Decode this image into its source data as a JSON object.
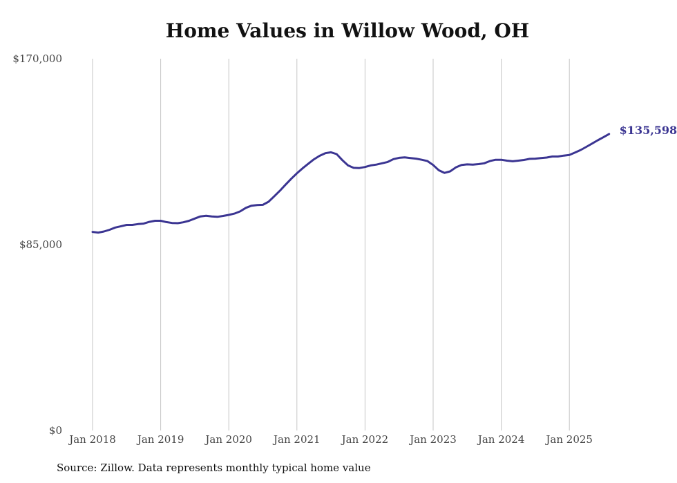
{
  "chart_data": {
    "type": "line",
    "title": "Home Values in Willow Wood, OH",
    "xlabel": "",
    "ylabel": "",
    "ylim": [
      0,
      170000
    ],
    "y_ticks": [
      "$0",
      "$85,000",
      "$170,000"
    ],
    "y_tick_values": [
      0,
      85000,
      170000
    ],
    "x_ticks": [
      "Jan 2018",
      "Jan 2019",
      "Jan 2020",
      "Jan 2021",
      "Jan 2022",
      "Jan 2023",
      "Jan 2024",
      "Jan 2025"
    ],
    "grid": "vertical",
    "line_color": "#3b3592",
    "end_label": "$135,598",
    "series": [
      {
        "values": [
          [
            2018.0,
            90800
          ],
          [
            2018.083,
            90500
          ],
          [
            2018.167,
            91000
          ],
          [
            2018.25,
            91800
          ],
          [
            2018.333,
            92800
          ],
          [
            2018.417,
            93400
          ],
          [
            2018.5,
            94000
          ],
          [
            2018.583,
            94000
          ],
          [
            2018.667,
            94400
          ],
          [
            2018.75,
            94600
          ],
          [
            2018.833,
            95400
          ],
          [
            2018.917,
            95900
          ],
          [
            2019.0,
            95900
          ],
          [
            2019.083,
            95300
          ],
          [
            2019.167,
            94900
          ],
          [
            2019.25,
            94800
          ],
          [
            2019.333,
            95200
          ],
          [
            2019.417,
            95900
          ],
          [
            2019.5,
            96900
          ],
          [
            2019.583,
            97900
          ],
          [
            2019.667,
            98200
          ],
          [
            2019.75,
            97900
          ],
          [
            2019.833,
            97700
          ],
          [
            2019.917,
            98100
          ],
          [
            2020.0,
            98600
          ],
          [
            2020.083,
            99200
          ],
          [
            2020.167,
            100200
          ],
          [
            2020.25,
            101800
          ],
          [
            2020.333,
            102800
          ],
          [
            2020.417,
            103100
          ],
          [
            2020.5,
            103200
          ],
          [
            2020.583,
            104600
          ],
          [
            2020.667,
            107100
          ],
          [
            2020.75,
            109600
          ],
          [
            2020.833,
            112400
          ],
          [
            2020.917,
            115100
          ],
          [
            2021.0,
            117600
          ],
          [
            2021.083,
            119900
          ],
          [
            2021.167,
            122000
          ],
          [
            2021.25,
            124000
          ],
          [
            2021.333,
            125600
          ],
          [
            2021.417,
            126800
          ],
          [
            2021.5,
            127200
          ],
          [
            2021.583,
            126400
          ],
          [
            2021.667,
            123600
          ],
          [
            2021.75,
            121200
          ],
          [
            2021.833,
            120100
          ],
          [
            2021.917,
            120000
          ],
          [
            2022.0,
            120500
          ],
          [
            2022.083,
            121200
          ],
          [
            2022.167,
            121600
          ],
          [
            2022.25,
            122200
          ],
          [
            2022.333,
            122800
          ],
          [
            2022.417,
            124100
          ],
          [
            2022.5,
            124700
          ],
          [
            2022.583,
            124900
          ],
          [
            2022.667,
            124600
          ],
          [
            2022.75,
            124300
          ],
          [
            2022.833,
            123800
          ],
          [
            2022.917,
            123200
          ],
          [
            2023.0,
            121400
          ],
          [
            2023.083,
            119000
          ],
          [
            2023.167,
            117800
          ],
          [
            2023.25,
            118500
          ],
          [
            2023.333,
            120300
          ],
          [
            2023.417,
            121400
          ],
          [
            2023.5,
            121700
          ],
          [
            2023.583,
            121600
          ],
          [
            2023.667,
            121800
          ],
          [
            2023.75,
            122200
          ],
          [
            2023.833,
            123200
          ],
          [
            2023.917,
            123800
          ],
          [
            2024.0,
            123800
          ],
          [
            2024.083,
            123400
          ],
          [
            2024.167,
            123100
          ],
          [
            2024.25,
            123400
          ],
          [
            2024.333,
            123700
          ],
          [
            2024.417,
            124200
          ],
          [
            2024.5,
            124300
          ],
          [
            2024.583,
            124600
          ],
          [
            2024.667,
            124800
          ],
          [
            2024.75,
            125300
          ],
          [
            2024.833,
            125300
          ],
          [
            2024.917,
            125700
          ],
          [
            2025.0,
            126000
          ],
          [
            2025.083,
            127100
          ],
          [
            2025.167,
            128300
          ],
          [
            2025.25,
            129700
          ],
          [
            2025.333,
            131200
          ],
          [
            2025.417,
            132700
          ],
          [
            2025.5,
            134100
          ],
          [
            2025.583,
            135598
          ]
        ]
      }
    ]
  },
  "footer": {
    "source": "Source: Zillow. Data represents monthly typical home value"
  }
}
